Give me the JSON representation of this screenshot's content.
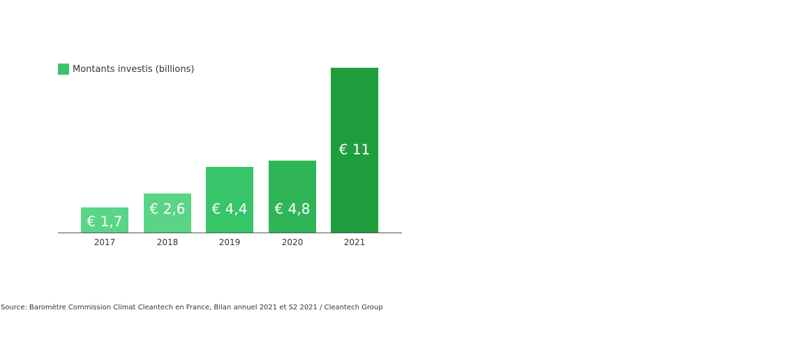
{
  "chart_data": {
    "type": "bar",
    "title": "",
    "xlabel": "",
    "ylabel": "",
    "legend": [
      {
        "label": "Montants investis (billions)",
        "color": "#3cc46a"
      }
    ],
    "categories": [
      "2017",
      "2018",
      "2019",
      "2020",
      "2021"
    ],
    "values": [
      1.7,
      2.6,
      4.4,
      4.8,
      11
    ],
    "value_labels": [
      "€ 1,7",
      "€ 2,6",
      "€ 4,4",
      "€ 4,8",
      "€ 11"
    ],
    "colors": [
      "#5ad486",
      "#5ad486",
      "#36c568",
      "#2fb558",
      "#1f9e3e"
    ],
    "grid": false,
    "legend_position": "top-left"
  },
  "legend": {
    "label": "Montants investis (billions)"
  },
  "source": "Source: Baromètre Commission Climat Cleantech en France, Bilan annuel 2021 et S2 2021 / Cleantech Group"
}
